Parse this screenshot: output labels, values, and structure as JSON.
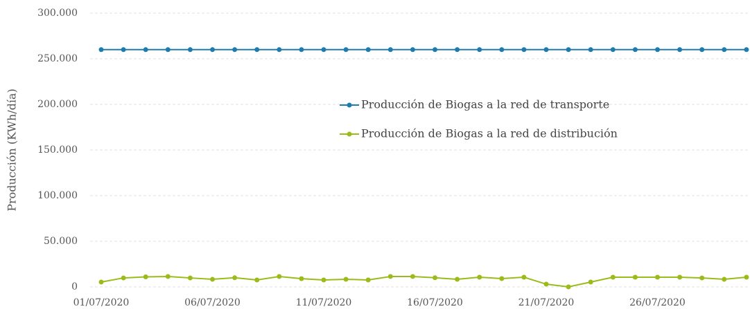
{
  "chart_data": {
    "type": "line",
    "y_label": "Producción (KWh/día)",
    "categories": [
      "01/07/2020",
      null,
      null,
      null,
      null,
      "06/07/2020",
      null,
      null,
      null,
      null,
      "11/07/2020",
      null,
      null,
      null,
      null,
      "16/07/2020",
      null,
      null,
      null,
      null,
      "21/07/2020",
      null,
      null,
      null,
      null,
      "26/07/2020",
      null,
      null,
      null,
      null
    ],
    "series": [
      {
        "name": "Producción de Biogas a la red de transporte",
        "color": "#1f7bab",
        "values": [
          260000,
          260000,
          260000,
          260000,
          260000,
          260000,
          260000,
          260000,
          260000,
          260000,
          260000,
          260000,
          260000,
          260000,
          260000,
          260000,
          260000,
          260000,
          260000,
          260000,
          260000,
          260000,
          260000,
          260000,
          260000,
          260000,
          260000,
          260000,
          260000,
          260000
        ]
      },
      {
        "name": "Producción de Biogas a la red de distribución",
        "color": "#9bbb1a",
        "values": [
          5300,
          9800,
          11000,
          11400,
          9800,
          8300,
          10000,
          7600,
          11400,
          9000,
          7600,
          8300,
          7600,
          11400,
          11400,
          10000,
          8300,
          10600,
          9100,
          10600,
          3000,
          0,
          5300,
          10600,
          10600,
          10600,
          10600,
          9800,
          8300,
          10600
        ]
      }
    ],
    "ylim": [
      0,
      300000
    ],
    "yticks": [
      0,
      {
        "value": 50000,
        "label": "50.000"
      },
      {
        "value": 100000,
        "label": "100.000"
      },
      {
        "value": 150000,
        "label": "150.000"
      },
      {
        "value": 200000,
        "label": "200.000"
      },
      {
        "value": 250000,
        "label": "250.000"
      },
      {
        "value": 300000,
        "label": "300.000"
      }
    ],
    "grid": true,
    "legend": "center"
  }
}
